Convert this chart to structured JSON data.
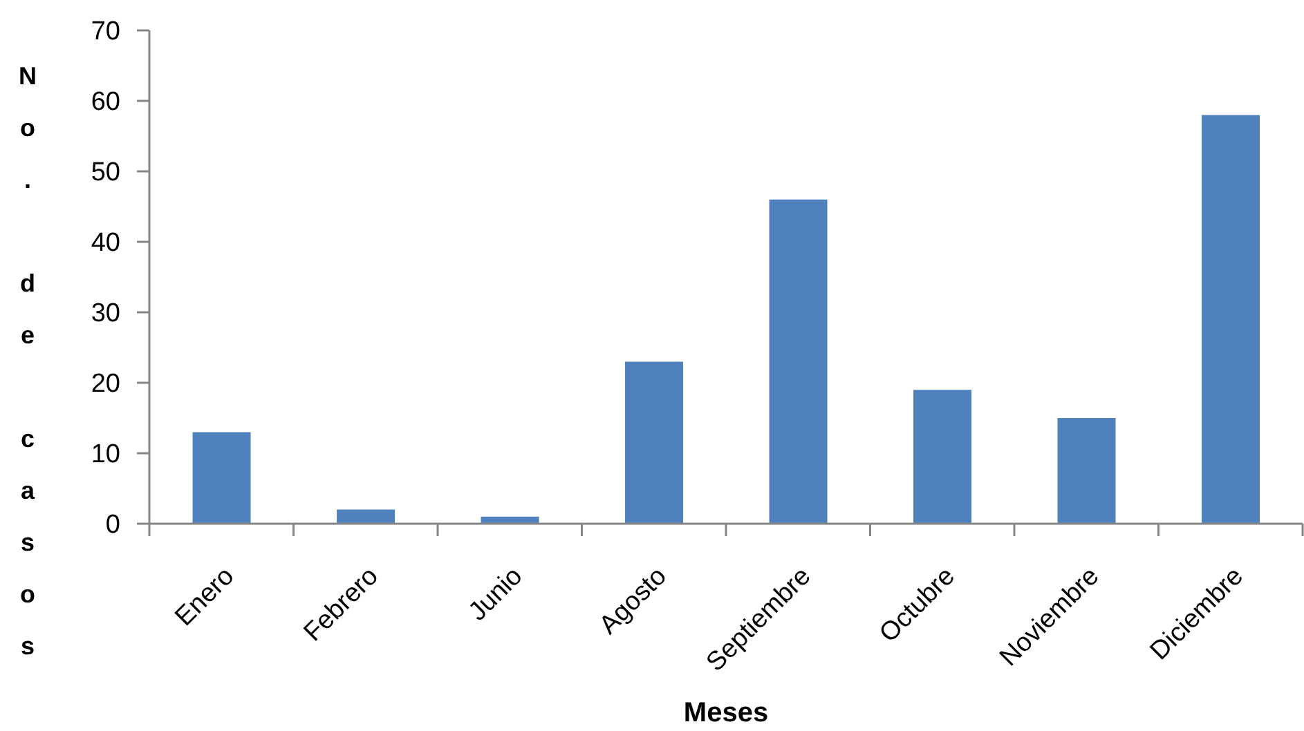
{
  "chart_data": {
    "type": "bar",
    "xlabel": "Meses",
    "ylabel": "No. de casos",
    "categories": [
      "Enero",
      "Febrero",
      "Junio",
      "Agosto",
      "Septiembre",
      "Octubre",
      "Noviembre",
      "Diciembre"
    ],
    "values": [
      13,
      2,
      1,
      23,
      46,
      19,
      15,
      58
    ],
    "color": "#4f81bd",
    "ylim": [
      0,
      70
    ],
    "yticks": [
      0,
      10,
      20,
      30,
      40,
      50,
      60,
      70
    ]
  }
}
